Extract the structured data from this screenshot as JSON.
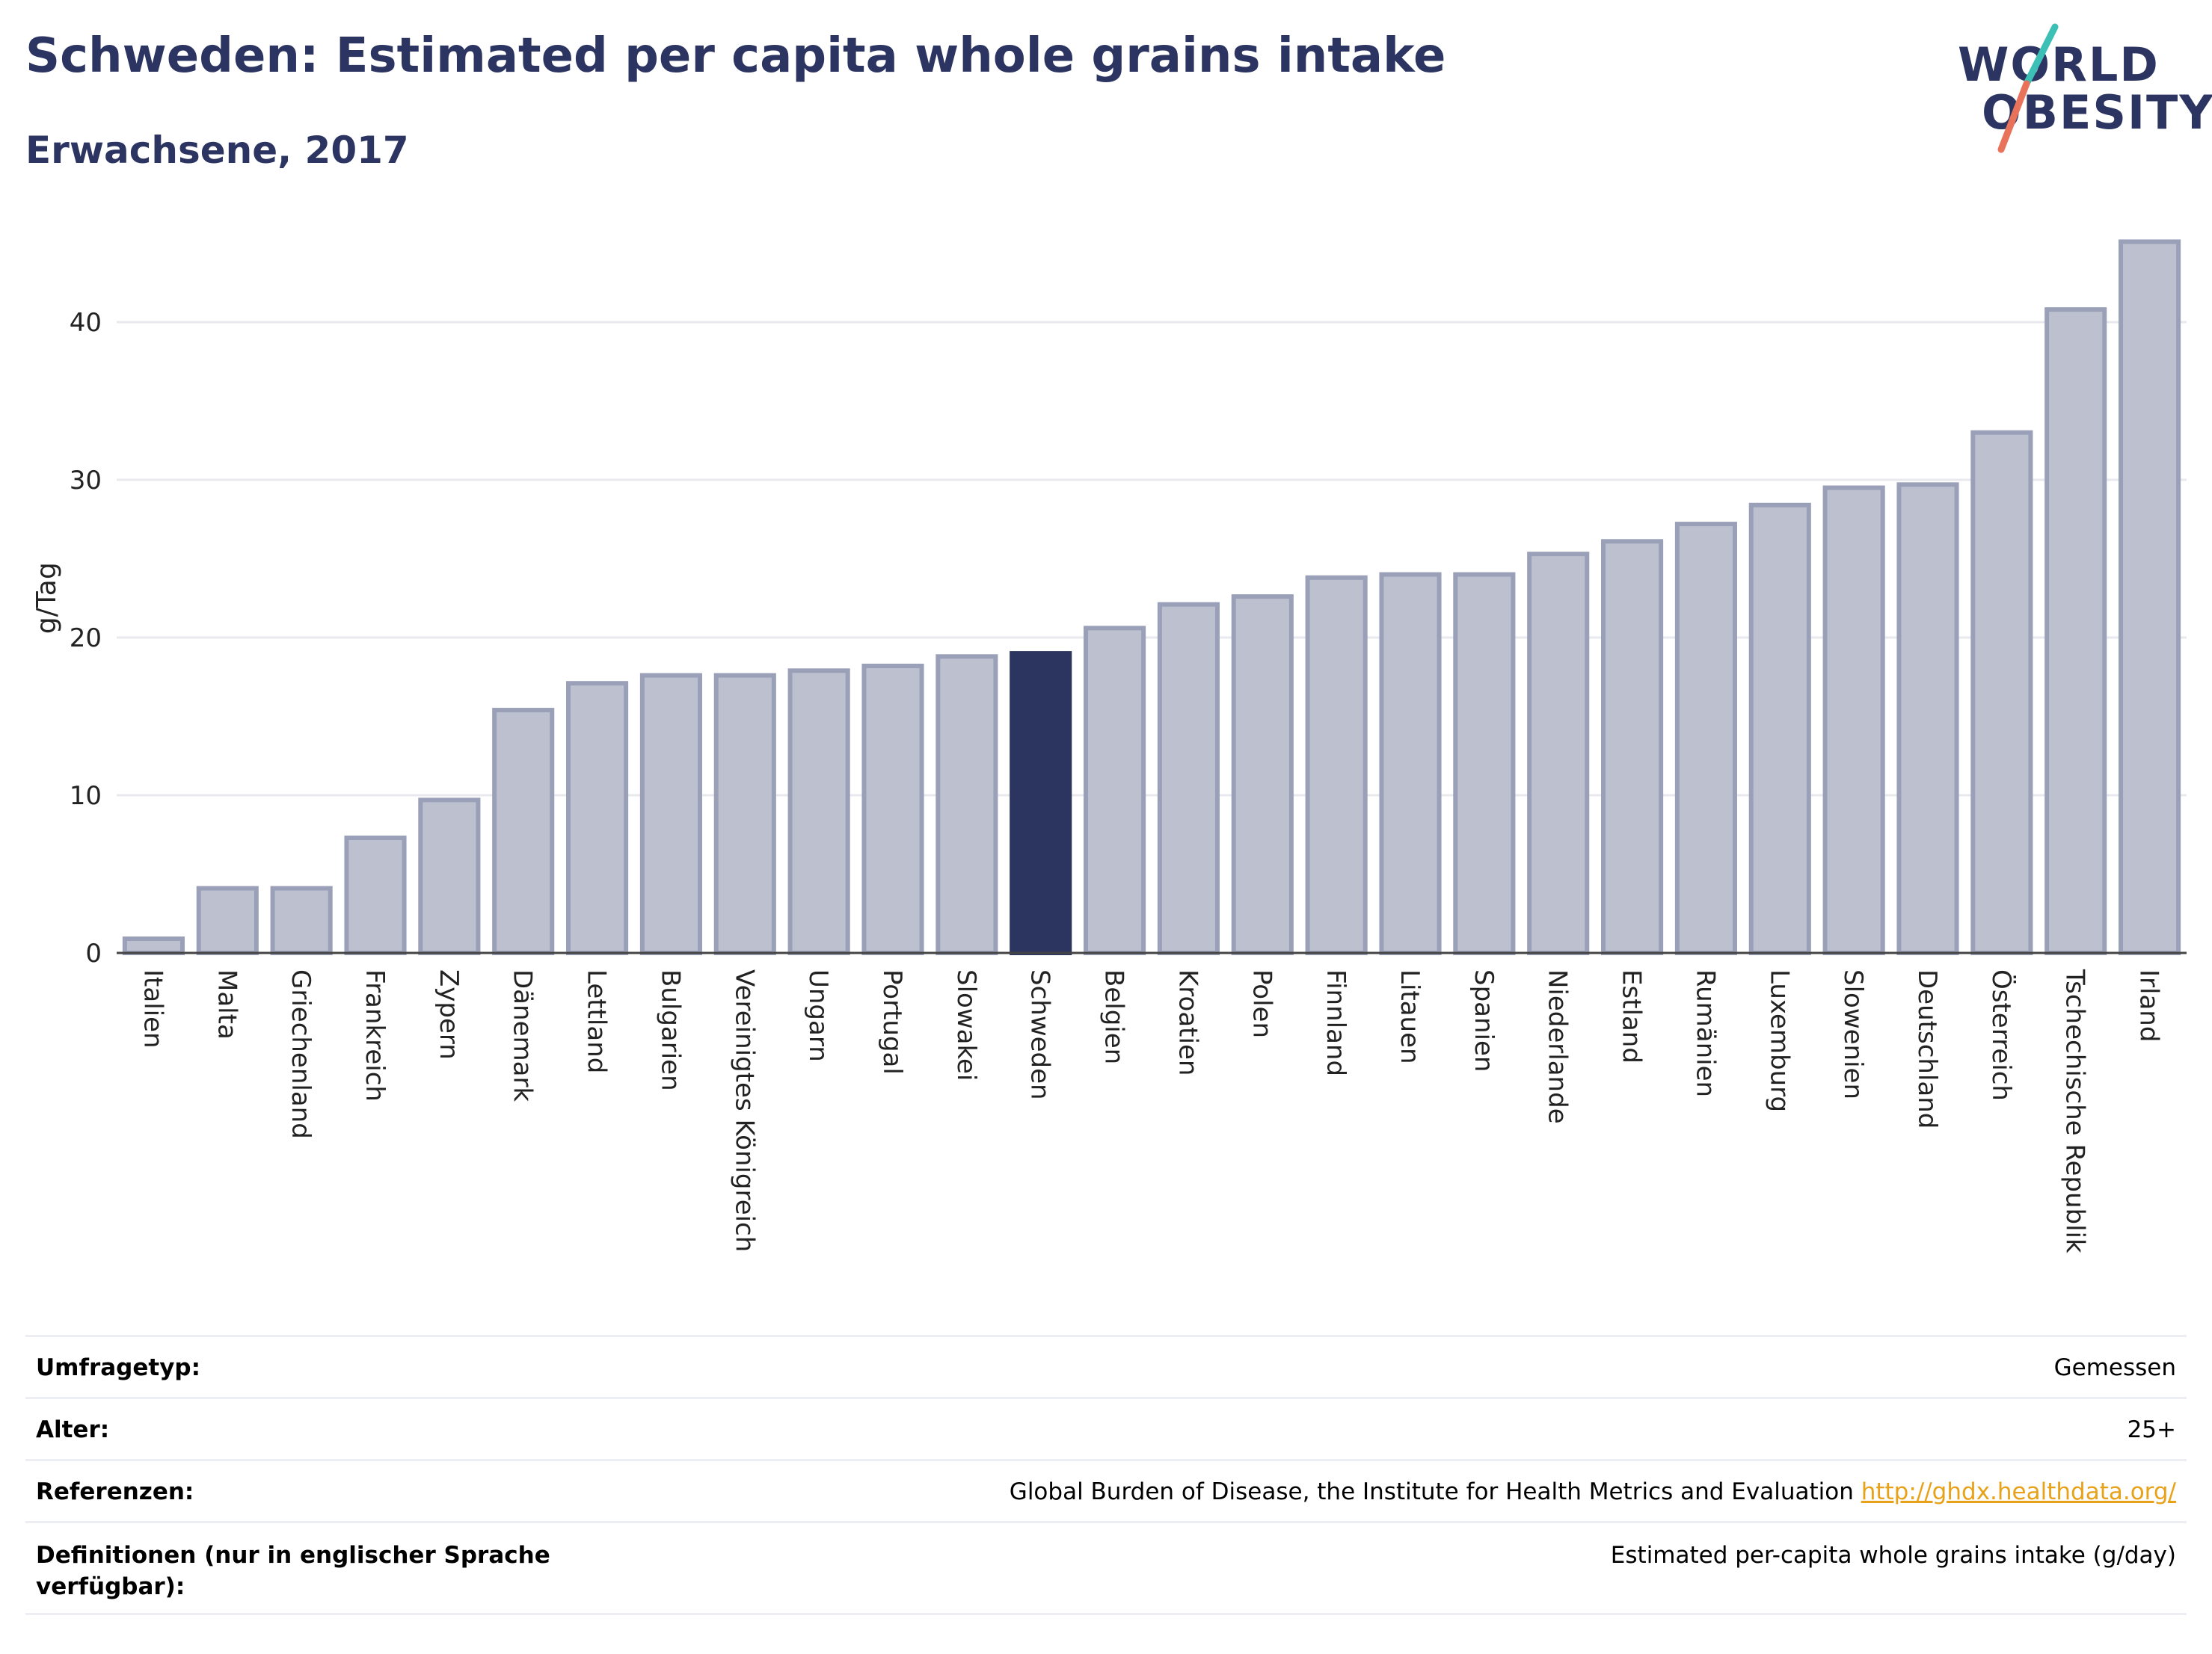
{
  "header": {
    "title": "Schweden: Estimated per capita whole grains intake",
    "subtitle": "Erwachsene, 2017"
  },
  "logo": {
    "line1": "WORLD",
    "line2": "OBESITY"
  },
  "colors": {
    "title": "#2c3561",
    "bar_default": "#bdc1cf",
    "bar_default_border": "#9aa0b8",
    "bar_highlight": "#2b355f",
    "link": "#e8a219",
    "logo_teal": "#3cbfb4",
    "logo_coral": "#e8735a"
  },
  "chart_data": {
    "type": "bar",
    "ylabel": "g/Tag",
    "xlabel": "",
    "ylim": [
      0,
      45
    ],
    "yticks": [
      0,
      10,
      20,
      30,
      40
    ],
    "grid": true,
    "highlight": "Schweden",
    "categories": [
      "Italien",
      "Malta",
      "Griechenland",
      "Frankreich",
      "Zypern",
      "Dänemark",
      "Lettland",
      "Bulgarien",
      "Vereinigtes Königreich",
      "Ungarn",
      "Portugal",
      "Slowakei",
      "Schweden",
      "Belgien",
      "Kroatien",
      "Polen",
      "Finnland",
      "Litauen",
      "Spanien",
      "Niederlande",
      "Estland",
      "Rumänien",
      "Luxemburg",
      "Slowenien",
      "Deutschland",
      "Österreich",
      "Tschechische Republik",
      "Irland"
    ],
    "values": [
      0.9,
      4.1,
      4.1,
      7.3,
      9.7,
      15.4,
      17.1,
      17.6,
      17.6,
      17.9,
      18.2,
      18.8,
      19.0,
      20.6,
      22.1,
      22.6,
      23.8,
      24.0,
      24.0,
      25.3,
      26.1,
      27.2,
      28.4,
      29.5,
      29.7,
      33.0,
      40.8,
      45.1
    ]
  },
  "meta": {
    "survey_label": "Umfragetyp:",
    "survey_value": "Gemessen",
    "age_label": "Alter:",
    "age_value": "25+",
    "refs_label": "Referenzen:",
    "refs_value": "Global Burden of Disease, the Institute for Health Metrics and Evaluation",
    "refs_link": "http://ghdx.healthdata.org/",
    "defs_label": "Definitionen (nur in englischer Sprache verfügbar):",
    "defs_value": "Estimated per-capita whole grains intake (g/day)"
  }
}
